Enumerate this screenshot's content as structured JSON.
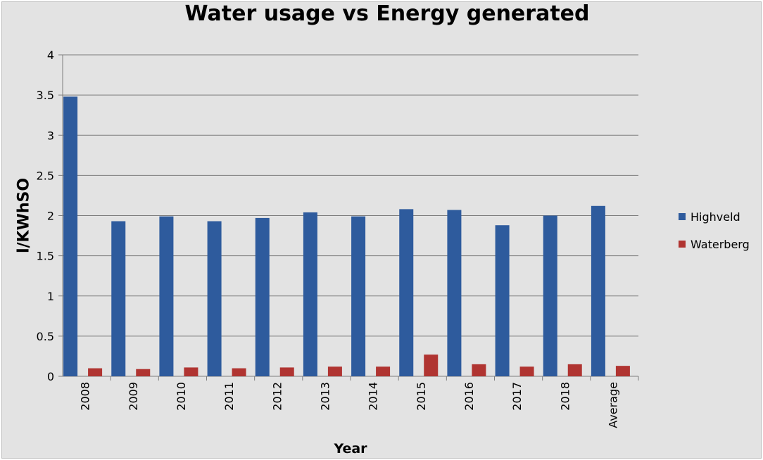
{
  "chart_data": {
    "type": "bar",
    "title": "Water usage vs Energy generated",
    "xlabel": "Year",
    "ylabel": "l/KWhSO",
    "ylim": [
      0,
      4
    ],
    "yticks": [
      "0",
      "0.5",
      "1",
      "1.5",
      "2",
      "2.5",
      "3",
      "3.5",
      "4"
    ],
    "grid": true,
    "legend_position": "right",
    "categories": [
      "2008",
      "2009",
      "2010",
      "2011",
      "2012",
      "2013",
      "2014",
      "2015",
      "2016",
      "2017",
      "2018",
      "Average"
    ],
    "series": [
      {
        "name": "Highveld",
        "color": "#2e5b9d",
        "values": [
          3.48,
          1.93,
          1.99,
          1.93,
          1.97,
          2.04,
          1.99,
          2.08,
          2.07,
          1.88,
          2.0,
          2.12
        ]
      },
      {
        "name": "Waterberg",
        "color": "#b03431",
        "values": [
          0.1,
          0.09,
          0.11,
          0.1,
          0.11,
          0.12,
          0.12,
          0.27,
          0.15,
          0.12,
          0.15,
          0.13
        ]
      }
    ]
  }
}
